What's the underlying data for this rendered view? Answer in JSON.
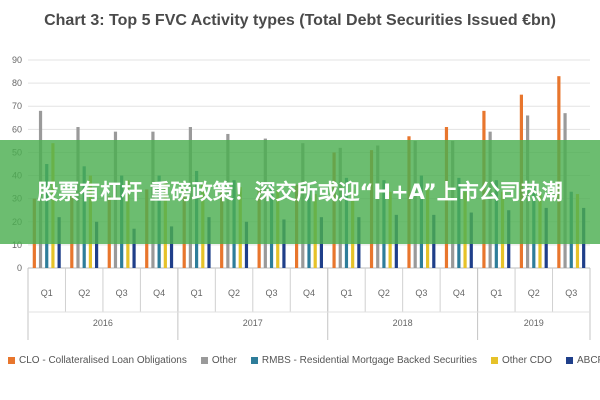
{
  "chart_data": {
    "type": "bar",
    "title": "Chart 3: Top 5 FVC Activity types (Total Debt Securities Issued €bn)",
    "xlabel": "",
    "ylabel": "",
    "ylim": [
      0,
      90
    ],
    "yticks": [
      0,
      10,
      20,
      30,
      40,
      50,
      60,
      70,
      80,
      90
    ],
    "grid": true,
    "legend_position": "bottom",
    "categories": [
      "Q1",
      "Q2",
      "Q3",
      "Q4",
      "Q1",
      "Q2",
      "Q3",
      "Q4",
      "Q1",
      "Q2",
      "Q3",
      "Q4",
      "Q1",
      "Q2",
      "Q3"
    ],
    "year_groups": [
      {
        "label": "2016",
        "count": 4
      },
      {
        "label": "2017",
        "count": 4
      },
      {
        "label": "2018",
        "count": 4
      },
      {
        "label": "2019",
        "count": 3
      }
    ],
    "series": [
      {
        "name": "CLO - Collateralised Loan Obligations",
        "color": "#e8762d",
        "values": [
          30,
          32,
          31,
          34,
          35,
          33,
          34,
          36,
          50,
          51,
          57,
          61,
          68,
          75,
          83
        ]
      },
      {
        "name": "Other",
        "color": "#9a9a9a",
        "values": [
          68,
          61,
          59,
          59,
          61,
          58,
          56,
          54,
          52,
          53,
          55,
          55,
          59,
          66,
          67
        ]
      },
      {
        "name": "RMBS - Residential Mortgage Backed Securities",
        "color": "#2e7d9a",
        "values": [
          45,
          44,
          40,
          40,
          42,
          38,
          37,
          35,
          39,
          38,
          40,
          39,
          38,
          37,
          33
        ]
      },
      {
        "name": "Other CDO",
        "color": "#e6c229",
        "values": [
          54,
          40,
          38,
          37,
          36,
          35,
          34,
          32,
          34,
          33,
          34,
          33,
          33,
          33,
          32
        ]
      },
      {
        "name": "ABCP",
        "color": "#1f3f8a",
        "values": [
          22,
          20,
          17,
          18,
          22,
          20,
          21,
          22,
          22,
          23,
          23,
          24,
          25,
          26,
          26
        ]
      }
    ]
  },
  "banner": {
    "text": "股票有杠杆 重磅政策！深交所或迎“H+A”上市公司热潮"
  }
}
